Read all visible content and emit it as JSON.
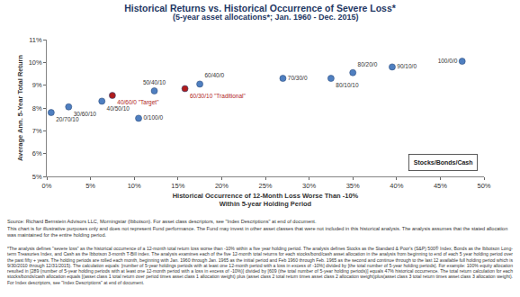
{
  "chart_data": {
    "type": "scatter",
    "title": "Historical Returns vs. Historical Occurrence of Severe Loss*",
    "subtitle": "(5-year asset allocations*; Jan. 1960 - Dec. 2015)",
    "xlabel": [
      "Historical Occurrence of 12-Month Loss Worse Than -10%",
      "Within 5-year Holding Period"
    ],
    "ylabel": "Average Ann. 5-Year Total Return",
    "labels": [
      "20/70/10",
      "30/60/10",
      "40/50/10",
      "40/60/0 \"Target\"",
      "0/100/0",
      "50/40/10",
      "60/30/10 \"Traditional\"",
      "60/40/0",
      "70/30/0",
      "80/10/10",
      "80/20/0",
      "90/10/0",
      "100/0/0"
    ],
    "x": [
      0.5,
      2.5,
      6.3,
      7.5,
      10.5,
      12.3,
      15.8,
      17.5,
      27.0,
      32.5,
      35.0,
      39.5,
      47.5
    ],
    "values": [
      7.8,
      8.05,
      8.3,
      8.55,
      7.55,
      8.75,
      8.85,
      9.05,
      9.3,
      9.3,
      9.55,
      9.8,
      10.05
    ],
    "colors": [
      "#4f7fc0",
      "#4f7fc0",
      "#4f7fc0",
      "#b01c1c",
      "#4f7fc0",
      "#4f7fc0",
      "#b01c1c",
      "#4f7fc0",
      "#4f7fc0",
      "#4f7fc0",
      "#4f7fc0",
      "#4f7fc0",
      "#4f7fc0"
    ],
    "marker": "circle",
    "xlim": [
      0,
      50
    ],
    "ylim": [
      5,
      11
    ],
    "xticks": [
      {
        "value": 0,
        "label": "0%"
      },
      {
        "value": 5,
        "label": "5%"
      },
      {
        "value": 10,
        "label": "10%"
      },
      {
        "value": 15,
        "label": "15%"
      },
      {
        "value": 20,
        "label": "20%"
      },
      {
        "value": 25,
        "label": "25%"
      },
      {
        "value": 30,
        "label": "30%"
      },
      {
        "value": 35,
        "label": "35%"
      },
      {
        "value": 40,
        "label": "40%"
      },
      {
        "value": 45,
        "label": "45%"
      },
      {
        "value": 50,
        "label": "50%"
      }
    ],
    "yticks": [
      {
        "value": 5,
        "label": "5%"
      },
      {
        "value": 6,
        "label": "6%"
      },
      {
        "value": 7,
        "label": "7%"
      },
      {
        "value": 8,
        "label": "8%"
      },
      {
        "value": 9,
        "label": "9%"
      },
      {
        "value": 10,
        "label": "10%"
      },
      {
        "value": 11,
        "label": "11%"
      }
    ],
    "grid": false,
    "annotations": [
      "Stocks/Bonds/Cash"
    ]
  },
  "notes": {
    "source": "Source: Richard Bernstein Advisors LLC, Morningstar (Ibbotson). For asset class descriptors, see \"Index Descriptions\" at end of document.",
    "disclaimer": "This chart is for illustrative purposes only and does not represent Fund performance.  The Fund may invest in other asset classes that were not included in this historical analysis. The analysis assumes that the stated allocation was maintained for the entire holding period.",
    "footnote": "*The analysis defines \"severe loss\" as the historical occurrence of a 12-month total return loss worse than -10% within a five year holding period. The analysis defines Stocks as the Standard & Poor's (S&P) 500® Index, Bonds as the Ibbotson Long-term Treasuries Index, and Cash as the Ibbotson 3-month T-Bill index. The analysis examines each of the five 12-month total returns for each stocks/bond/cash asset allocation in the analysis from beginning to end of each 5 year holding period over the past fifty + years. The holding periods are rolled each month, beginning with Jan. 1960 through Jan. 1965 as the initial period and Feb 1960 through Feb. 1965 as the second and continue through to the last 12 available full holding period which is 9/30/2010 through 12/31/2015). The calculation equals: [number of 5-year holdings periods with at least one 12-month period with a loss in excess of -10%] divided by [the total number of 5-year holding periods]. For example: 100% equity allocation resulted in [289 (number of 5-year holding periods with at least one 12-month period with a loss in excess of -10%)] divided by [609 (the total number of 5-year holding periods)] equals 47% historical occurrence. The total return calculation for each stocks/bonds/cash allocation equals [(asset class 1 total return over period times asset class 1 allocation weight) plus (asset class 2 total return times asset class 2 allocation weight)plus(asset class 3 total return times asset class 3 allocation weight). For Index descriptors, see \"Index Descriptions\" at end of document."
  }
}
